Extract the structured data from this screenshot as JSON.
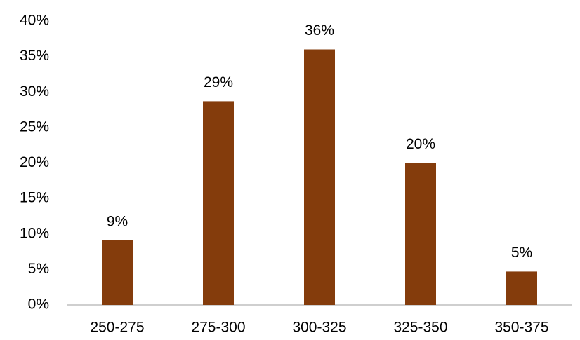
{
  "chart_data": {
    "type": "bar",
    "categories": [
      "250-275",
      "275-300",
      "300-325",
      "325-350",
      "350-375"
    ],
    "values": [
      9.1,
      28.7,
      36,
      20,
      4.7
    ],
    "value_labels": [
      "9%",
      "29%",
      "36%",
      "20%",
      "5%"
    ],
    "color": "#843c0c",
    "ylim": [
      0,
      40
    ],
    "yticks": [
      {
        "value": 0,
        "label": "0%"
      },
      {
        "value": 5,
        "label": "5%"
      },
      {
        "value": 10,
        "label": "10%"
      },
      {
        "value": 15,
        "label": "15%"
      },
      {
        "value": 20,
        "label": "20%"
      },
      {
        "value": 25,
        "label": "25%"
      },
      {
        "value": 30,
        "label": "30%"
      },
      {
        "value": 35,
        "label": "35%"
      },
      {
        "value": 40,
        "label": "40%"
      }
    ],
    "grid": false
  }
}
